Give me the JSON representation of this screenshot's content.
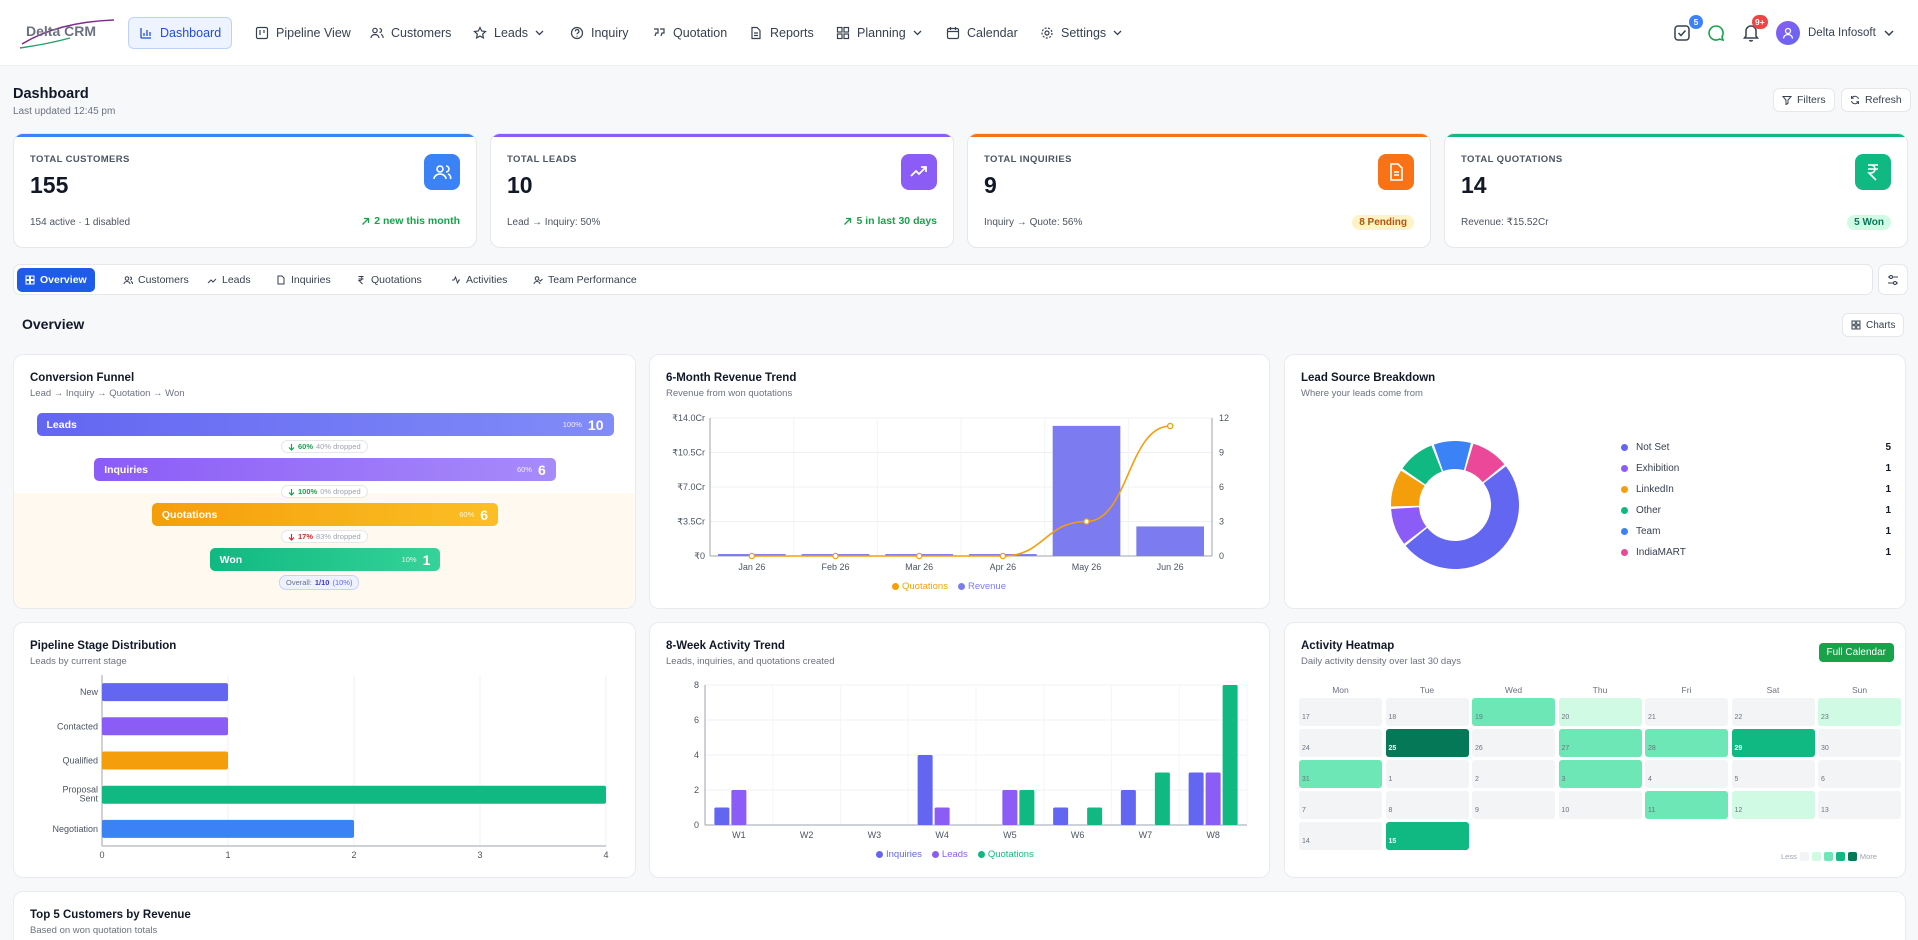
{
  "brand": {
    "name": "Delta CRM"
  },
  "nav": {
    "items": [
      {
        "label": "Dashboard",
        "icon": "bar-chart-icon",
        "active": true
      },
      {
        "label": "Pipeline View",
        "icon": "kanban-icon"
      },
      {
        "label": "Customers",
        "icon": "users-icon"
      },
      {
        "label": "Leads",
        "icon": "star-icon",
        "dropdown": true
      },
      {
        "label": "Inquiry",
        "icon": "help-circle-icon"
      },
      {
        "label": "Quotation",
        "icon": "quote-icon"
      },
      {
        "label": "Reports",
        "icon": "file-icon"
      },
      {
        "label": "Planning",
        "icon": "grid-icon",
        "dropdown": true
      },
      {
        "label": "Calendar",
        "icon": "calendar-icon"
      },
      {
        "label": "Settings",
        "icon": "gear-icon",
        "dropdown": true
      }
    ],
    "tasks_badge": "5",
    "notifications_badge": "9+",
    "user_name": "Delta Infosoft"
  },
  "header": {
    "title": "Dashboard",
    "updated": "Last updated 12:45 pm",
    "filters_label": "Filters",
    "refresh_label": "Refresh"
  },
  "stats": [
    {
      "label": "TOTAL CUSTOMERS",
      "value": "155",
      "foot": "154 active · 1 disabled",
      "right": "2 new this month",
      "color": "#3b82f6",
      "icon": "users-icon"
    },
    {
      "label": "TOTAL LEADS",
      "value": "10",
      "foot": "Lead → Inquiry: 50%",
      "right": "5 in last 30 days",
      "color": "#8b5cf6",
      "icon": "trending-up-icon"
    },
    {
      "label": "TOTAL INQUIRIES",
      "value": "9",
      "foot": "Inquiry → Quote: 56%",
      "right": "8 Pending",
      "color": "#f97316",
      "icon": "document-icon"
    },
    {
      "label": "TOTAL QUOTATIONS",
      "value": "14",
      "foot": "Revenue: ₹15.52Cr",
      "right": "5 Won",
      "color": "#10b981",
      "icon": "rupee-icon"
    }
  ],
  "tabs": [
    {
      "label": "Overview",
      "active": true
    },
    {
      "label": "Customers"
    },
    {
      "label": "Leads"
    },
    {
      "label": "Inquiries"
    },
    {
      "label": "Quotations"
    },
    {
      "label": "Activities"
    },
    {
      "label": "Team Performance"
    }
  ],
  "section": {
    "title": "Overview",
    "charts_label": "Charts"
  },
  "funnel": {
    "title": "Conversion Funnel",
    "subtitle": "Lead → Inquiry → Quotation → Won",
    "stages": [
      {
        "name": "Leads",
        "pct": "100%",
        "count": "10",
        "width": 1.0
      },
      {
        "name": "Inquiries",
        "pct": "60%",
        "count": "6",
        "width": 0.8
      },
      {
        "name": "Quotations",
        "pct": "60%",
        "count": "6",
        "width": 0.6
      },
      {
        "name": "Won",
        "pct": "10%",
        "count": "1",
        "width": 0.4
      }
    ],
    "drops": [
      {
        "rate": "60%",
        "text": "40% dropped",
        "dir": "down-good"
      },
      {
        "rate": "100%",
        "text": "0% dropped",
        "dir": "down-good"
      },
      {
        "rate": "17%",
        "text": "83% dropped",
        "dir": "down-bad"
      }
    ],
    "overall_label": "Overall:",
    "overall_value": "1/10",
    "overall_pct": "(10%)"
  },
  "revenue": {
    "title": "6-Month Revenue Trend",
    "subtitle": "Revenue from won quotations"
  },
  "sources": {
    "title": "Lead Source Breakdown",
    "subtitle": "Where your leads come from"
  },
  "pipeline": {
    "title": "Pipeline Stage Distribution",
    "subtitle": "Leads by current stage"
  },
  "activity": {
    "title": "8-Week Activity Trend",
    "subtitle": "Leads, inquiries, and quotations created"
  },
  "heatmap": {
    "title": "Activity Heatmap",
    "subtitle": "Daily activity density over last 30 days",
    "full_calendar_label": "Full Calendar",
    "days": [
      "Mon",
      "Tue",
      "Wed",
      "Thu",
      "Fri",
      "Sat",
      "Sun"
    ],
    "weeks": [
      [
        {
          "d": "17",
          "l": 0
        },
        {
          "d": "18",
          "l": 0
        },
        {
          "d": "19",
          "l": 2
        },
        {
          "d": "20",
          "l": 1
        },
        {
          "d": "21",
          "l": 0
        },
        {
          "d": "22",
          "l": 0
        },
        {
          "d": "23",
          "l": 1
        }
      ],
      [
        {
          "d": "24",
          "l": 0
        },
        {
          "d": "25",
          "l": 4
        },
        {
          "d": "26",
          "l": 0
        },
        {
          "d": "27",
          "l": 2
        },
        {
          "d": "28",
          "l": 2
        },
        {
          "d": "29",
          "l": 3
        },
        {
          "d": "30",
          "l": 0
        }
      ],
      [
        {
          "d": "31",
          "l": 2
        },
        {
          "d": "1",
          "l": 0
        },
        {
          "d": "2",
          "l": 0
        },
        {
          "d": "3",
          "l": 2
        },
        {
          "d": "4",
          "l": 0
        },
        {
          "d": "5",
          "l": 0
        },
        {
          "d": "6",
          "l": 0
        }
      ],
      [
        {
          "d": "7",
          "l": 0
        },
        {
          "d": "8",
          "l": 0
        },
        {
          "d": "9",
          "l": 0
        },
        {
          "d": "10",
          "l": 0
        },
        {
          "d": "11",
          "l": 2
        },
        {
          "d": "12",
          "l": 1
        },
        {
          "d": "13",
          "l": 0
        }
      ],
      [
        {
          "d": "14",
          "l": 0
        },
        {
          "d": "15",
          "l": 3
        }
      ]
    ],
    "less_label": "Less",
    "more_label": "More"
  },
  "top_customers": {
    "title": "Top 5 Customers by Revenue",
    "subtitle": "Based on won quotation totals"
  },
  "chart_data": [
    {
      "type": "bar",
      "title": "6-Month Revenue Trend",
      "categories": [
        "Jan 26",
        "Feb 26",
        "Mar 26",
        "Apr 26",
        "May 26",
        "Jun 26"
      ],
      "series": [
        {
          "name": "Revenue",
          "axis": "left",
          "type": "bar",
          "values": [
            0.2,
            0.2,
            0.2,
            0.2,
            13.2,
            3.0
          ],
          "color": "#7c7cf0"
        },
        {
          "name": "Quotations",
          "axis": "right",
          "type": "line",
          "values": [
            0,
            0,
            0,
            0,
            3,
            11.3
          ],
          "color": "#f59e0b"
        }
      ],
      "ylim_left": [
        0,
        14
      ],
      "ylim_right": [
        0,
        12
      ],
      "yticks_left": [
        "₹0",
        "₹3.5Cr",
        "₹7.0Cr",
        "₹10.5Cr",
        "₹14.0Cr"
      ],
      "yticks_right": [
        "0",
        "3",
        "6",
        "9",
        "12"
      ],
      "legend": "bottom"
    },
    {
      "type": "pie",
      "title": "Lead Source Breakdown",
      "slices": [
        {
          "label": "Not Set",
          "value": 5,
          "color": "#6366f1"
        },
        {
          "label": "Exhibition",
          "value": 1,
          "color": "#8b5cf6"
        },
        {
          "label": "LinkedIn",
          "value": 1,
          "color": "#f59e0b"
        },
        {
          "label": "Other",
          "value": 1,
          "color": "#10b981"
        },
        {
          "label": "Team",
          "value": 1,
          "color": "#3b82f6"
        },
        {
          "label": "IndiaMART",
          "value": 1,
          "color": "#ec4899"
        }
      ]
    },
    {
      "type": "bar",
      "orientation": "horizontal",
      "title": "Pipeline Stage Distribution",
      "categories": [
        "New",
        "Contacted",
        "Qualified",
        "Proposal Sent",
        "Negotiation"
      ],
      "values": [
        1,
        1,
        1,
        4,
        2
      ],
      "colors": [
        "#6366f1",
        "#8b5cf6",
        "#f59e0b",
        "#10b981",
        "#3b82f6"
      ],
      "xlim": [
        0,
        4
      ],
      "xticks": [
        "0",
        "1",
        "2",
        "3",
        "4"
      ]
    },
    {
      "type": "bar",
      "title": "8-Week Activity Trend",
      "categories": [
        "W1",
        "W2",
        "W3",
        "W4",
        "W5",
        "W6",
        "W7",
        "W8"
      ],
      "series": [
        {
          "name": "Inquiries",
          "values": [
            1,
            0,
            0,
            4,
            0,
            1,
            2,
            3
          ],
          "color": "#6366f1"
        },
        {
          "name": "Leads",
          "values": [
            2,
            0,
            0,
            1,
            2,
            0,
            0,
            3
          ],
          "color": "#8b5cf6"
        },
        {
          "name": "Quotations",
          "values": [
            0,
            0,
            0,
            0,
            2,
            1,
            3,
            8
          ],
          "color": "#10b981"
        }
      ],
      "ylim": [
        0,
        8
      ],
      "yticks": [
        "0",
        "2",
        "4",
        "6",
        "8"
      ],
      "legend": "bottom"
    }
  ]
}
